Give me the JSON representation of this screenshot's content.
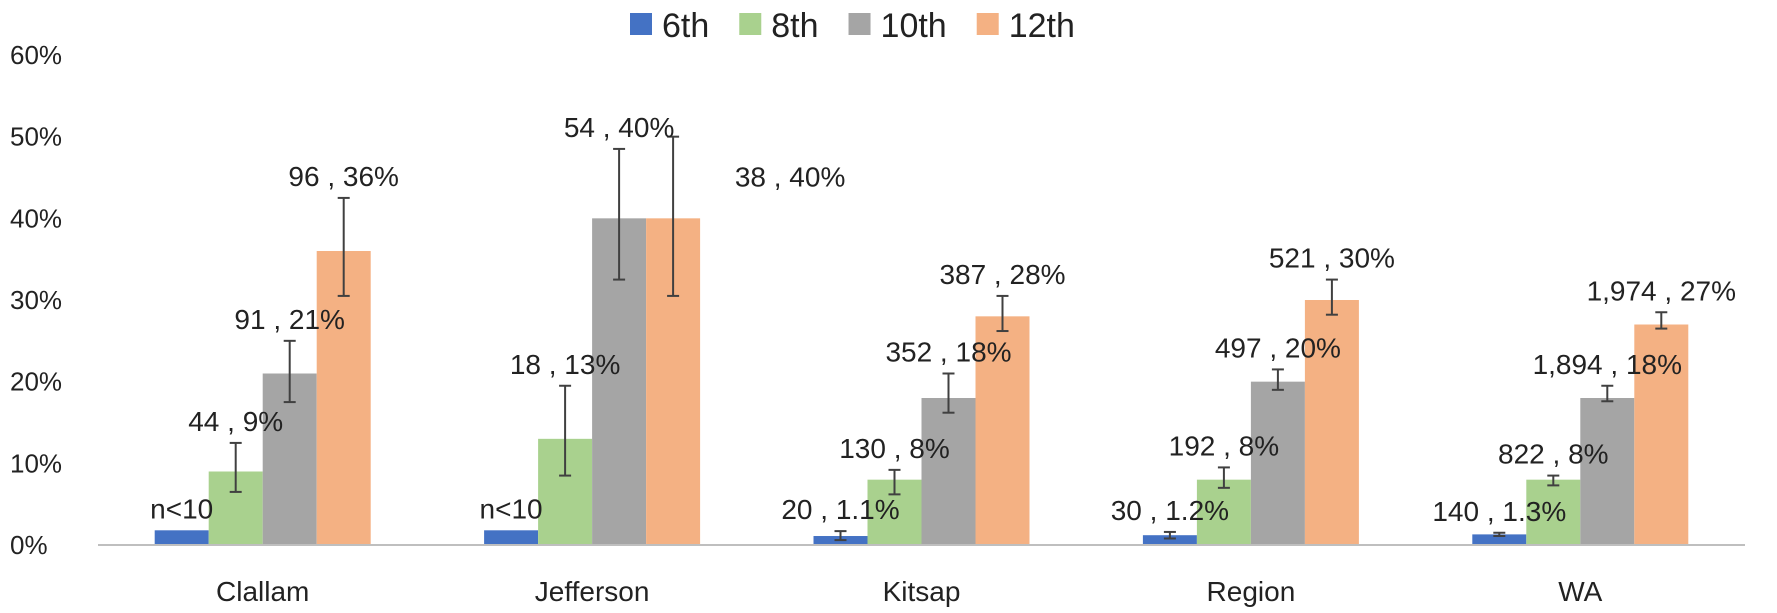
{
  "chart_data": {
    "type": "bar",
    "categories": [
      "Clallam",
      "Jefferson",
      "Kitsap",
      "Region",
      "WA"
    ],
    "ylim": [
      0,
      60
    ],
    "yticks": [
      0,
      10,
      20,
      30,
      40,
      50,
      60
    ],
    "ytick_labels": [
      "0%",
      "10%",
      "20%",
      "30%",
      "40%",
      "50%",
      "60%"
    ],
    "grid": false,
    "legend_position": "top",
    "series": [
      {
        "name": "6th",
        "color": "#4472C4",
        "values": [
          1.8,
          1.8,
          1.1,
          1.2,
          1.3
        ],
        "error_low": [
          null,
          null,
          0.6,
          0.8,
          1.1
        ],
        "error_high": [
          null,
          null,
          1.7,
          1.6,
          1.5
        ],
        "labels": [
          "n<10",
          "n<10",
          "20 , 1.1%",
          "30 , 1.2%",
          "140 , 1.3%"
        ]
      },
      {
        "name": "8th",
        "color": "#A9D18E",
        "values": [
          9,
          13,
          8,
          8,
          8
        ],
        "error_low": [
          6.5,
          8.5,
          6.2,
          7,
          7.3
        ],
        "error_high": [
          12.5,
          19.5,
          9.2,
          9.5,
          8.5
        ],
        "labels": [
          "44 , 9%",
          "18 , 13%",
          "130 , 8%",
          "192 , 8%",
          "822 , 8%"
        ]
      },
      {
        "name": "10th",
        "color": "#A5A5A5",
        "values": [
          21,
          40,
          18,
          20,
          18
        ],
        "error_low": [
          17.5,
          32.5,
          16.2,
          19,
          17.6
        ],
        "error_high": [
          25,
          48.5,
          21,
          21.5,
          19.5
        ],
        "labels": [
          "91 , 21%",
          "54 , 40%",
          "352 , 18%",
          "497 , 20%",
          "1,894 , 18%"
        ]
      },
      {
        "name": "12th",
        "color": "#F4B183",
        "values": [
          36,
          40,
          28,
          30,
          27
        ],
        "error_low": [
          30.5,
          30.5,
          26.2,
          28.2,
          26.5
        ],
        "error_high": [
          42.5,
          50,
          30.5,
          32.5,
          28.5
        ],
        "labels": [
          "96 , 36%",
          "38 , 40%",
          "387 , 28%",
          "521 , 30%",
          "1,974 , 27%"
        ]
      }
    ]
  }
}
